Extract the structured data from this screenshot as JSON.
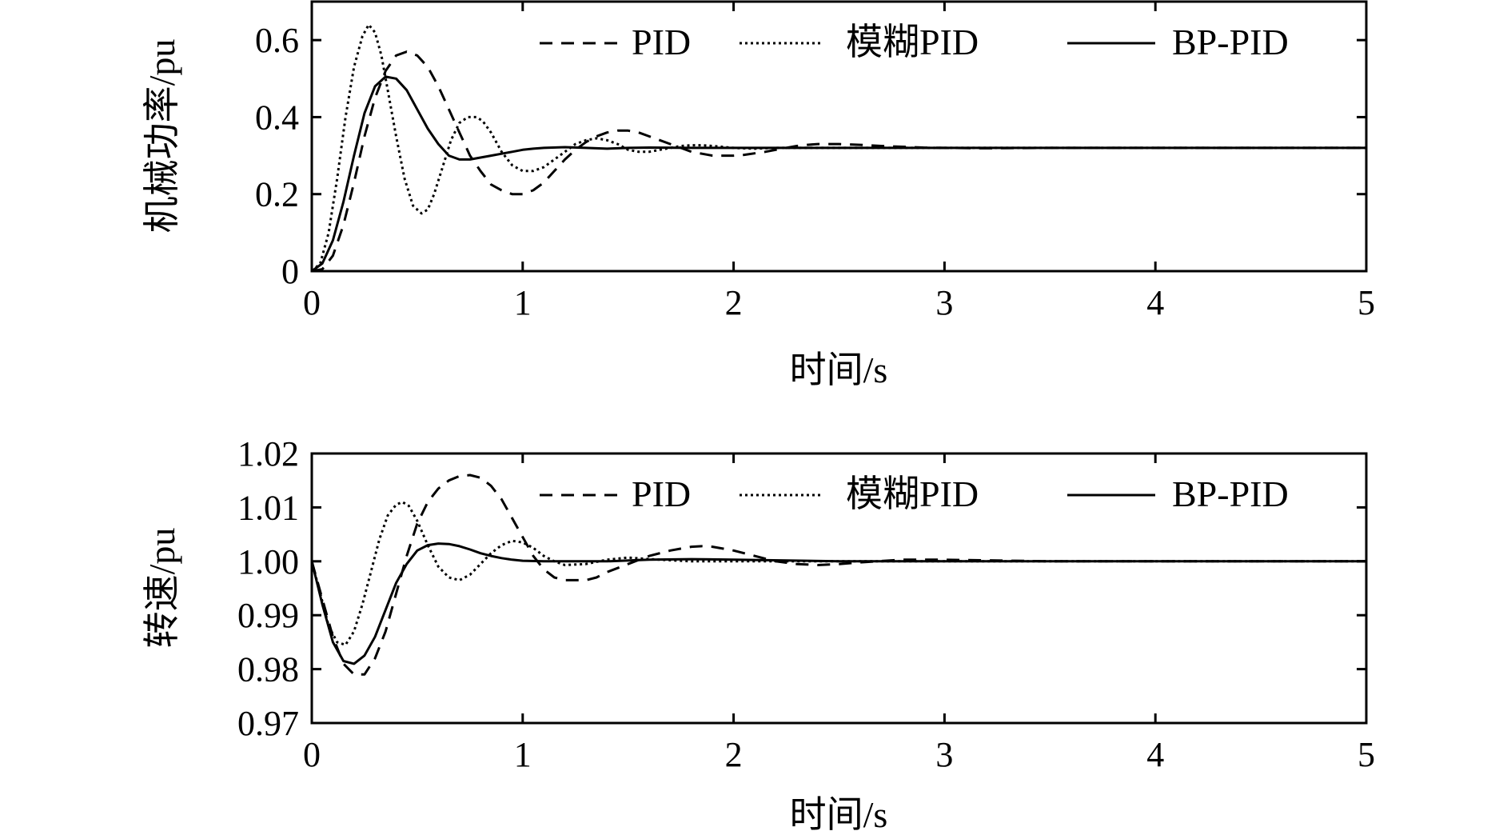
{
  "chart_data": [
    {
      "type": "line",
      "xlabel": "时间/s",
      "ylabel": "机械功率/pu",
      "xlim": [
        0,
        5
      ],
      "ylim": [
        0,
        0.7
      ],
      "xticks": [
        0,
        1,
        2,
        3,
        4,
        5
      ],
      "xtick_labels": [
        "0",
        "1",
        "2",
        "3",
        "4",
        "5"
      ],
      "yticks": [
        0,
        0.2,
        0.4,
        0.6
      ],
      "ytick_labels": [
        "0",
        "0.2",
        "0.4",
        "0.6"
      ],
      "grid": false,
      "legend_position": "top",
      "series": [
        {
          "name": "PID",
          "style": "dashed",
          "x": [
            0,
            0.05,
            0.1,
            0.15,
            0.2,
            0.25,
            0.3,
            0.35,
            0.4,
            0.45,
            0.5,
            0.55,
            0.6,
            0.65,
            0.7,
            0.75,
            0.8,
            0.85,
            0.9,
            0.95,
            1.0,
            1.05,
            1.1,
            1.15,
            1.2,
            1.25,
            1.3,
            1.35,
            1.4,
            1.45,
            1.5,
            1.55,
            1.6,
            1.65,
            1.7,
            1.75,
            1.8,
            1.85,
            1.9,
            1.95,
            2.0,
            2.05,
            2.1,
            2.15,
            2.2,
            2.25,
            2.3,
            2.35,
            2.4,
            2.45,
            2.5,
            2.6,
            2.7,
            2.8,
            2.9,
            3.0,
            3.2,
            3.5,
            4.0,
            4.5,
            5.0
          ],
          "y": [
            0,
            0.005,
            0.04,
            0.12,
            0.23,
            0.35,
            0.45,
            0.52,
            0.56,
            0.57,
            0.56,
            0.53,
            0.48,
            0.42,
            0.36,
            0.3,
            0.26,
            0.225,
            0.21,
            0.2,
            0.2,
            0.21,
            0.23,
            0.26,
            0.29,
            0.315,
            0.335,
            0.35,
            0.36,
            0.365,
            0.365,
            0.36,
            0.35,
            0.34,
            0.33,
            0.32,
            0.31,
            0.305,
            0.3,
            0.3,
            0.3,
            0.302,
            0.306,
            0.31,
            0.315,
            0.32,
            0.325,
            0.328,
            0.33,
            0.33,
            0.33,
            0.328,
            0.325,
            0.323,
            0.321,
            0.32,
            0.319,
            0.32,
            0.32,
            0.32,
            0.32
          ]
        },
        {
          "name": "模糊PID",
          "style": "dotted",
          "x": [
            0,
            0.04,
            0.08,
            0.12,
            0.16,
            0.2,
            0.24,
            0.27,
            0.3,
            0.33,
            0.36,
            0.4,
            0.44,
            0.48,
            0.52,
            0.55,
            0.58,
            0.62,
            0.66,
            0.7,
            0.74,
            0.78,
            0.81,
            0.85,
            0.9,
            0.95,
            1.0,
            1.05,
            1.1,
            1.15,
            1.2,
            1.25,
            1.3,
            1.35,
            1.4,
            1.45,
            1.5,
            1.55,
            1.6,
            1.65,
            1.7,
            1.75,
            1.8,
            1.85,
            1.9,
            2.0,
            2.1,
            2.2,
            2.4,
            2.6,
            3.0,
            4.0,
            5.0
          ],
          "y": [
            0,
            0.02,
            0.1,
            0.24,
            0.4,
            0.53,
            0.61,
            0.64,
            0.62,
            0.56,
            0.47,
            0.35,
            0.24,
            0.17,
            0.15,
            0.16,
            0.2,
            0.27,
            0.34,
            0.385,
            0.4,
            0.4,
            0.39,
            0.36,
            0.31,
            0.275,
            0.26,
            0.26,
            0.27,
            0.29,
            0.31,
            0.33,
            0.34,
            0.345,
            0.34,
            0.33,
            0.315,
            0.31,
            0.31,
            0.315,
            0.32,
            0.325,
            0.327,
            0.327,
            0.325,
            0.32,
            0.318,
            0.32,
            0.32,
            0.32,
            0.32,
            0.32,
            0.32
          ]
        },
        {
          "name": "BP-PID",
          "style": "solid",
          "x": [
            0,
            0.05,
            0.1,
            0.15,
            0.2,
            0.25,
            0.3,
            0.35,
            0.4,
            0.45,
            0.5,
            0.55,
            0.6,
            0.65,
            0.7,
            0.75,
            0.8,
            0.85,
            0.9,
            0.95,
            1.0,
            1.05,
            1.1,
            1.2,
            1.3,
            1.4,
            1.5,
            1.6,
            1.8,
            2.0,
            2.5,
            3.0,
            4.0,
            5.0
          ],
          "y": [
            0,
            0.02,
            0.08,
            0.18,
            0.3,
            0.41,
            0.48,
            0.505,
            0.5,
            0.47,
            0.42,
            0.37,
            0.33,
            0.3,
            0.29,
            0.29,
            0.295,
            0.3,
            0.305,
            0.31,
            0.315,
            0.318,
            0.32,
            0.322,
            0.32,
            0.318,
            0.32,
            0.321,
            0.32,
            0.32,
            0.32,
            0.32,
            0.32,
            0.32
          ]
        }
      ]
    },
    {
      "type": "line",
      "xlabel": "时间/s",
      "ylabel": "转速/pu",
      "xlim": [
        0,
        5
      ],
      "ylim": [
        0.97,
        1.02
      ],
      "xticks": [
        0,
        1,
        2,
        3,
        4,
        5
      ],
      "xtick_labels": [
        "0",
        "1",
        "2",
        "3",
        "4",
        "5"
      ],
      "yticks": [
        0.97,
        0.98,
        0.99,
        1.0,
        1.01,
        1.02
      ],
      "ytick_labels": [
        "0.97",
        "0.98",
        "0.99",
        "1.00",
        "1.01",
        "1.02"
      ],
      "grid": false,
      "legend_position": "top",
      "series": [
        {
          "name": "PID",
          "style": "dashed",
          "x": [
            0,
            0.05,
            0.1,
            0.15,
            0.2,
            0.25,
            0.3,
            0.35,
            0.4,
            0.45,
            0.5,
            0.55,
            0.6,
            0.65,
            0.7,
            0.75,
            0.8,
            0.85,
            0.9,
            0.95,
            1.0,
            1.05,
            1.1,
            1.15,
            1.2,
            1.25,
            1.3,
            1.35,
            1.4,
            1.5,
            1.6,
            1.7,
            1.8,
            1.85,
            1.9,
            2.0,
            2.1,
            2.2,
            2.3,
            2.4,
            2.5,
            2.6,
            2.8,
            3.0,
            3.5,
            4.0,
            5.0
          ],
          "y": [
            1.0,
            0.993,
            0.986,
            0.981,
            0.979,
            0.979,
            0.982,
            0.987,
            0.994,
            1.001,
            1.007,
            1.011,
            1.0135,
            1.015,
            1.0158,
            1.016,
            1.0155,
            1.014,
            1.0115,
            1.008,
            1.0045,
            1.001,
            0.9985,
            0.997,
            0.9965,
            0.9965,
            0.9965,
            0.997,
            0.998,
            0.9995,
            1.001,
            1.002,
            1.0027,
            1.0028,
            1.0027,
            1.002,
            1.001,
            1.0,
            0.9995,
            0.9993,
            0.9995,
            0.9998,
            1.0003,
            1.0003,
            1.0,
            1.0,
            1.0
          ]
        },
        {
          "name": "模糊PID",
          "style": "dotted",
          "x": [
            0,
            0.04,
            0.08,
            0.12,
            0.16,
            0.2,
            0.24,
            0.28,
            0.32,
            0.36,
            0.4,
            0.43,
            0.46,
            0.5,
            0.55,
            0.6,
            0.65,
            0.7,
            0.75,
            0.8,
            0.85,
            0.9,
            0.95,
            1.0,
            1.05,
            1.1,
            1.15,
            1.2,
            1.3,
            1.4,
            1.5,
            1.6,
            1.8,
            2.0,
            2.5,
            3.0,
            5.0
          ],
          "y": [
            1.0,
            0.994,
            0.988,
            0.985,
            0.9845,
            0.987,
            0.992,
            0.998,
            1.004,
            1.0085,
            1.0105,
            1.011,
            1.0103,
            1.0075,
            1.003,
            0.999,
            0.997,
            0.9965,
            0.9975,
            0.9995,
            1.0015,
            1.003,
            1.0038,
            1.0035,
            1.0025,
            1.001,
            1.0,
            0.9993,
            0.9995,
            1.0003,
            1.0007,
            1.0004,
            1.0,
            1.0,
            1.0,
            1.0,
            1.0
          ]
        },
        {
          "name": "BP-PID",
          "style": "solid",
          "x": [
            0,
            0.05,
            0.1,
            0.15,
            0.2,
            0.25,
            0.3,
            0.35,
            0.4,
            0.45,
            0.5,
            0.55,
            0.6,
            0.65,
            0.7,
            0.75,
            0.8,
            0.85,
            0.9,
            0.95,
            1.0,
            1.1,
            1.2,
            1.4,
            1.6,
            1.8,
            2.0,
            2.5,
            3.0,
            4.0,
            5.0
          ],
          "y": [
            1.0,
            0.992,
            0.985,
            0.9815,
            0.981,
            0.9825,
            0.986,
            0.991,
            0.996,
            0.9995,
            1.002,
            1.003,
            1.0033,
            1.0032,
            1.0028,
            1.0022,
            1.0015,
            1.001,
            1.0006,
            1.0003,
            1.0001,
            1.0,
            1.0,
            1.0,
            1.0003,
            1.0004,
            1.0003,
            1.0,
            1.0,
            1.0,
            1.0
          ]
        }
      ]
    }
  ]
}
